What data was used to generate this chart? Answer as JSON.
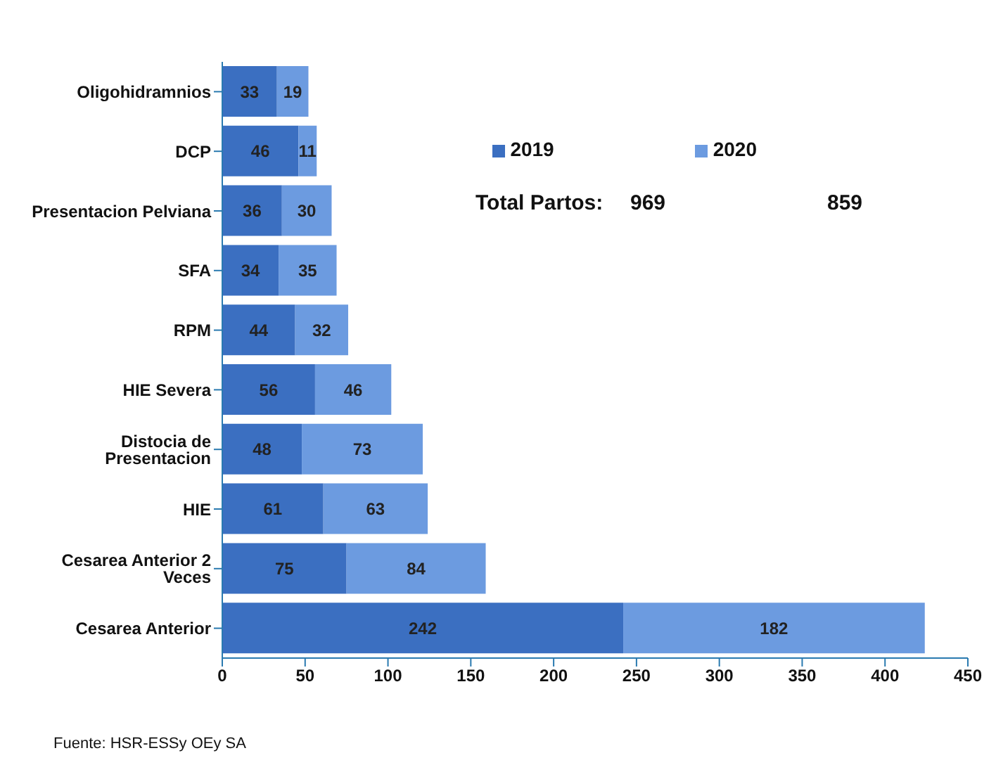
{
  "chart_data": {
    "type": "bar",
    "orientation": "horizontal",
    "stacked": true,
    "categories": [
      "Oligohidramnios",
      "DCP",
      "Presentacion Pelviana",
      "SFA",
      "RPM",
      "HIE Severa",
      "Distocia de Presentacion",
      "HIE",
      "Cesarea Anterior 2 Veces",
      "Cesarea Anterior"
    ],
    "series": [
      {
        "name": "2019",
        "color": "#3b6fc1",
        "values": [
          33,
          46,
          36,
          34,
          44,
          56,
          48,
          61,
          75,
          242
        ]
      },
      {
        "name": "2020",
        "color": "#6c9be0",
        "values": [
          19,
          11,
          30,
          35,
          32,
          46,
          73,
          63,
          84,
          182
        ]
      }
    ],
    "xlim": [
      0,
      450
    ],
    "xticks": [
      0,
      50,
      100,
      150,
      200,
      250,
      300,
      350,
      400,
      450
    ],
    "data_labels": true,
    "legend": "top right",
    "grid": false,
    "annotations": [
      "Total Partos:",
      "969",
      "859",
      "Fuente: HSR-ESSy OEy SA"
    ]
  }
}
